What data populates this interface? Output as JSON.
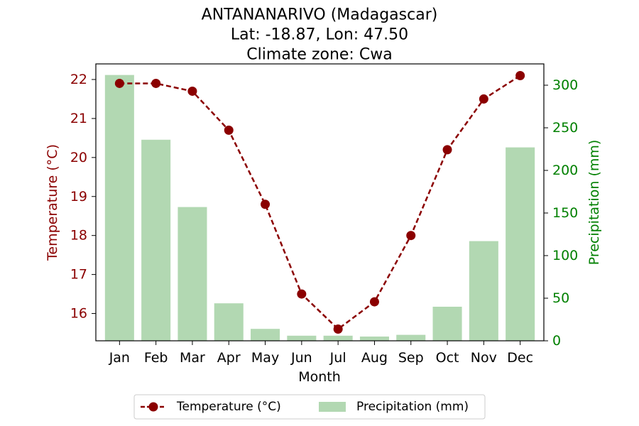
{
  "chart_data": {
    "type": "bar+line",
    "title_lines": [
      "ANTANANARIVO (Madagascar)",
      "Lat: -18.87, Lon: 47.50",
      "Climate zone: Cwa"
    ],
    "xlabel": "Month",
    "ylabel_left": "Temperature (°C)",
    "ylabel_right": "Precipitation (mm)",
    "categories": [
      "Jan",
      "Feb",
      "Mar",
      "Apr",
      "May",
      "Jun",
      "Jul",
      "Aug",
      "Sep",
      "Oct",
      "Nov",
      "Dec"
    ],
    "series": [
      {
        "name": "Temperature (°C)",
        "kind": "line",
        "axis": "left",
        "color": "#8b0000",
        "line_style": "dashed",
        "marker": "circle",
        "values": [
          21.9,
          21.9,
          21.7,
          20.7,
          18.8,
          16.5,
          15.6,
          16.3,
          18.0,
          20.2,
          21.5,
          22.1
        ]
      },
      {
        "name": "Precipitation (mm)",
        "kind": "bar",
        "axis": "right",
        "color": "#b2d8b2",
        "values": [
          312,
          236,
          157,
          44,
          14,
          6,
          6,
          5,
          7,
          40,
          117,
          227
        ]
      }
    ],
    "y_left": {
      "lim": [
        15.3,
        22.4
      ],
      "ticks": [
        16,
        17,
        18,
        19,
        20,
        21,
        22
      ],
      "color": "#8b0000"
    },
    "y_right": {
      "lim": [
        0,
        325
      ],
      "ticks": [
        0,
        50,
        100,
        150,
        200,
        250,
        300
      ],
      "color": "#008000"
    },
    "grid": false,
    "legend_position": "bottom-center"
  }
}
